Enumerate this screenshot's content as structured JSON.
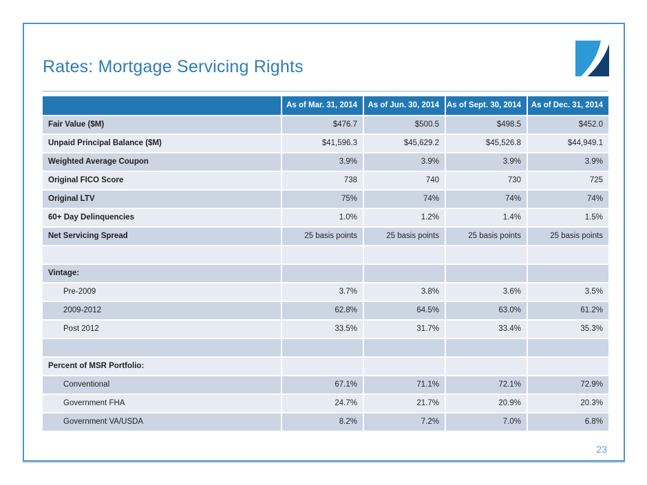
{
  "slide": {
    "title": "Rates: Mortgage Servicing Rights",
    "page_number": "23",
    "logo_name": "company-logo"
  },
  "colors": {
    "header_blue": "#2278b5",
    "row_dark": "#ccd5e3",
    "row_light": "#e7ebf3",
    "title_blue": "#2e7cb8",
    "frame_border": "#4b93cb",
    "logo_light_blue": "#2b9ad5",
    "logo_navy": "#113e6e",
    "page_number_blue": "#5b9bd5"
  },
  "table": {
    "corner_label": "",
    "columns": [
      "As of Mar. 31, 2014",
      "As of Jun. 30, 2014",
      "As of Sept. 30, 2014",
      "As of Dec. 31, 2014"
    ],
    "rows": [
      {
        "label": "Fair Value ($M)",
        "style": "bold",
        "values": [
          "$476.7",
          "$500.5",
          "$498.5",
          "$452.0"
        ]
      },
      {
        "label": "Unpaid Principal Balance ($M)",
        "style": "bold",
        "values": [
          "$41,596.3",
          "$45,629.2",
          "$45,526.8",
          "$44,949.1"
        ]
      },
      {
        "label": "Weighted Average Coupon",
        "style": "bold",
        "values": [
          "3.9%",
          "3.9%",
          "3.9%",
          "3.9%"
        ]
      },
      {
        "label": "Original FICO Score",
        "style": "bold",
        "values": [
          "738",
          "740",
          "730",
          "725"
        ]
      },
      {
        "label": "Original LTV",
        "style": "bold",
        "values": [
          "75%",
          "74%",
          "74%",
          "74%"
        ]
      },
      {
        "label": "60+ Day Delinquencies",
        "style": "bold",
        "values": [
          "1.0%",
          "1.2%",
          "1.4%",
          "1.5%"
        ]
      },
      {
        "label": "Net Servicing Spread",
        "style": "bold",
        "values": [
          "25 basis points",
          "25 basis points",
          "25 basis points",
          "25 basis points"
        ]
      },
      {
        "label": "",
        "style": "empty",
        "values": [
          "",
          "",
          "",
          ""
        ]
      },
      {
        "label": "Vintage:",
        "style": "bold",
        "values": [
          "",
          "",
          "",
          ""
        ]
      },
      {
        "label": "Pre-2009",
        "style": "indent",
        "values": [
          "3.7%",
          "3.8%",
          "3.6%",
          "3.5%"
        ]
      },
      {
        "label": "2009-2012",
        "style": "indent",
        "values": [
          "62.8%",
          "64.5%",
          "63.0%",
          "61.2%"
        ]
      },
      {
        "label": "Post 2012",
        "style": "indent",
        "values": [
          "33.5%",
          "31.7%",
          "33.4%",
          "35.3%"
        ]
      },
      {
        "label": "",
        "style": "empty",
        "values": [
          "",
          "",
          "",
          ""
        ]
      },
      {
        "label": "Percent of MSR Portfolio:",
        "style": "bold",
        "values": [
          "",
          "",
          "",
          ""
        ]
      },
      {
        "label": "Conventional",
        "style": "indent",
        "values": [
          "67.1%",
          "71.1%",
          "72.1%",
          "72.9%"
        ]
      },
      {
        "label": "Government FHA",
        "style": "indent",
        "values": [
          "24.7%",
          "21.7%",
          "20.9%",
          "20.3%"
        ]
      },
      {
        "label": "Government VA/USDA",
        "style": "indent",
        "values": [
          "8.2%",
          "7.2%",
          "7.0%",
          "6.8%"
        ]
      }
    ]
  }
}
